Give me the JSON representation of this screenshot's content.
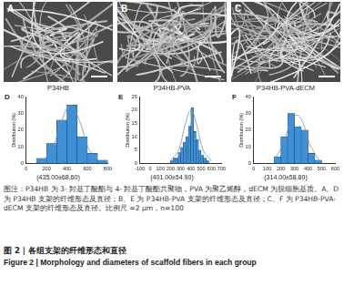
{
  "images": [
    {
      "label": "A"
    },
    {
      "label": "B"
    },
    {
      "label": "C"
    }
  ],
  "chart_data": [
    {
      "type": "histogram",
      "label": "D",
      "title": "P34HB",
      "subtitle": "(435.00±68.60)",
      "y_label": "Distribution (%)",
      "bins": [
        100,
        200,
        300,
        400,
        500,
        600,
        700,
        800
      ],
      "values": [
        3,
        12,
        26,
        35,
        16,
        6,
        2
      ],
      "color": "#3d8fd6",
      "curve": {
        "x": [
          150,
          250,
          350,
          435,
          520,
          620,
          720
        ],
        "values": [
          1,
          8,
          26,
          35,
          26,
          8,
          1
        ],
        "color": "#7f8fa6"
      },
      "xlim": [
        0,
        800
      ],
      "xticks": [
        0,
        200,
        400,
        600,
        800
      ],
      "ylim": [
        0,
        40
      ],
      "yticks": [
        0,
        10,
        20,
        30,
        40
      ],
      "grid": false
    },
    {
      "type": "histogram",
      "label": "E",
      "title": "P34HB-PVA",
      "subtitle": "(401.00±54.90)",
      "y_label": "Distribution (%)",
      "bins": [
        200,
        225,
        250,
        275,
        300,
        325,
        350,
        375,
        400,
        425,
        450,
        475,
        500,
        525,
        550,
        575
      ],
      "values": [
        1,
        2,
        2,
        4,
        6,
        8,
        10,
        14,
        21,
        12,
        9,
        5,
        3,
        2,
        1
      ],
      "color": "#3d8fd6",
      "curve": {
        "x": [
          200,
          280,
          340,
          401,
          460,
          520,
          600
        ],
        "values": [
          1,
          5,
          14,
          20,
          14,
          5,
          1
        ],
        "color": "#7f8fa6"
      },
      "xlim": [
        -100,
        700
      ],
      "xticks": [
        -100,
        0,
        100,
        200,
        300,
        400,
        500,
        600,
        700
      ],
      "ylim": [
        0,
        25
      ],
      "yticks": [
        0,
        5,
        10,
        15,
        20,
        25
      ],
      "grid": false
    },
    {
      "type": "histogram",
      "label": "F",
      "title": "P34HB-PVA-dECM",
      "subtitle": "(314.00±58.80)",
      "y_label": "Distribution (%)",
      "bins": [
        150,
        200,
        250,
        300,
        350,
        400,
        450,
        500
      ],
      "values": [
        4,
        16,
        30,
        22,
        20,
        6,
        2
      ],
      "color": "#3d8fd6",
      "curve": {
        "x": [
          150,
          220,
          270,
          314,
          360,
          410,
          480
        ],
        "values": [
          2,
          12,
          25,
          29,
          25,
          12,
          2
        ],
        "color": "#7f8fa6"
      },
      "xlim": [
        0,
        600
      ],
      "xticks": [
        0,
        100,
        200,
        300,
        400,
        500,
        600
      ],
      "ylim": [
        0,
        40
      ],
      "yticks": [
        0,
        10,
        20,
        30,
        40
      ],
      "grid": false
    }
  ],
  "caption": "图注：P34HB 为 3- 羟基丁酸酯与 4- 羟基丁酸酯共聚物，PVA 为聚乙烯醇，dECM 为脱细胞基质。A、D 为 P34HB 支架的纤维形态及直径；B、E 为 P34HB-PVA 支架的纤维形态及直径；C、F 为 P34HB-PVA-dECM 支架的纤维形态及直径。比例尺 =2 μm，n=100",
  "figure_title": "图 2 | 各组支架的纤维形态和直径",
  "figure_title_en": "Figure 2 | Morphology and diameters of scaffold fibers in each group"
}
